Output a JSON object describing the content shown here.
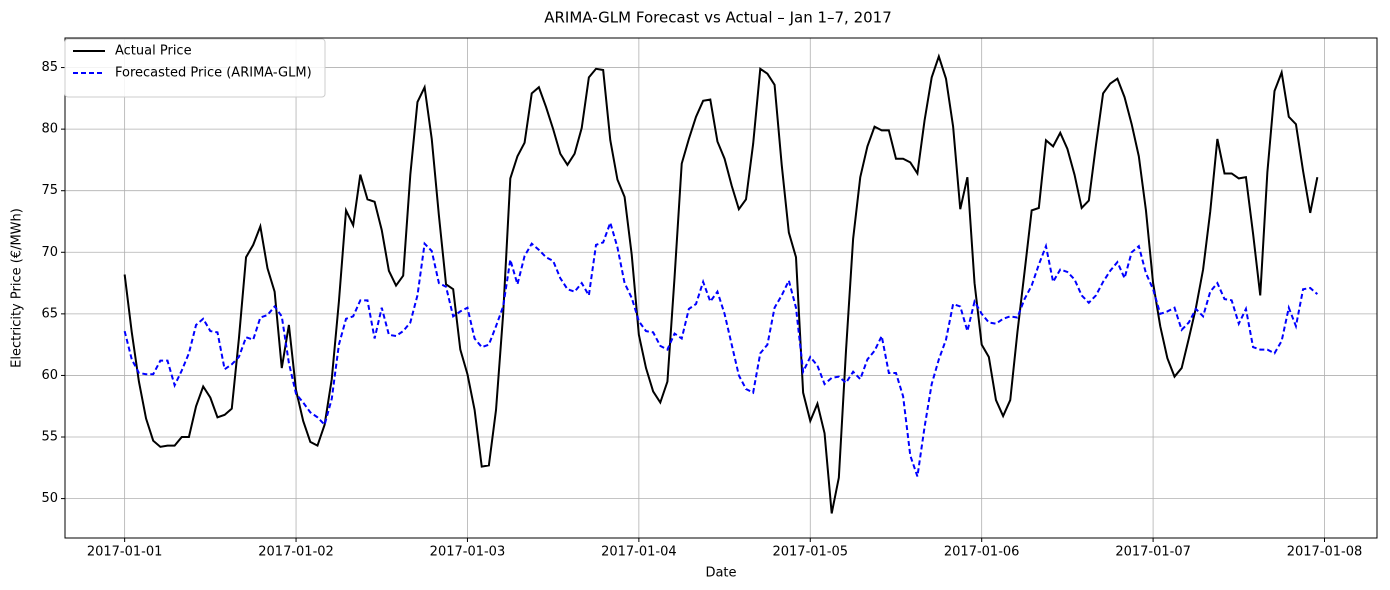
{
  "chart_data": {
    "type": "line",
    "title": "ARIMA-GLM Forecast vs Actual – Jan 1–7, 2017",
    "xlabel": "Date",
    "ylabel": "Electricity Price (€/MWh)",
    "x": [
      "2017-01-01T00:00",
      "2017-01-01T01:00",
      "2017-01-01T02:00",
      "2017-01-01T03:00",
      "2017-01-01T04:00",
      "2017-01-01T05:00",
      "2017-01-01T06:00",
      "2017-01-01T07:00",
      "2017-01-01T08:00",
      "2017-01-01T09:00",
      "2017-01-01T10:00",
      "2017-01-01T11:00",
      "2017-01-01T12:00",
      "2017-01-01T13:00",
      "2017-01-01T14:00",
      "2017-01-01T15:00",
      "2017-01-01T16:00",
      "2017-01-01T17:00",
      "2017-01-01T18:00",
      "2017-01-01T19:00",
      "2017-01-01T20:00",
      "2017-01-01T21:00",
      "2017-01-01T22:00",
      "2017-01-01T23:00",
      "2017-01-02T00:00",
      "2017-01-02T01:00",
      "2017-01-02T02:00",
      "2017-01-02T03:00",
      "2017-01-02T04:00",
      "2017-01-02T05:00",
      "2017-01-02T06:00",
      "2017-01-02T07:00",
      "2017-01-02T08:00",
      "2017-01-02T09:00",
      "2017-01-02T10:00",
      "2017-01-02T11:00",
      "2017-01-02T12:00",
      "2017-01-02T13:00",
      "2017-01-02T14:00",
      "2017-01-02T15:00",
      "2017-01-02T16:00",
      "2017-01-02T17:00",
      "2017-01-02T18:00",
      "2017-01-02T19:00",
      "2017-01-02T20:00",
      "2017-01-02T21:00",
      "2017-01-02T22:00",
      "2017-01-02T23:00",
      "2017-01-03T00:00",
      "2017-01-03T01:00",
      "2017-01-03T02:00",
      "2017-01-03T03:00",
      "2017-01-03T04:00",
      "2017-01-03T05:00",
      "2017-01-03T06:00",
      "2017-01-03T07:00",
      "2017-01-03T08:00",
      "2017-01-03T09:00",
      "2017-01-03T10:00",
      "2017-01-03T11:00",
      "2017-01-03T12:00",
      "2017-01-03T13:00",
      "2017-01-03T14:00",
      "2017-01-03T15:00",
      "2017-01-03T16:00",
      "2017-01-03T17:00",
      "2017-01-03T18:00",
      "2017-01-03T19:00",
      "2017-01-03T20:00",
      "2017-01-03T21:00",
      "2017-01-03T22:00",
      "2017-01-03T23:00",
      "2017-01-04T00:00",
      "2017-01-04T01:00",
      "2017-01-04T02:00",
      "2017-01-04T03:00",
      "2017-01-04T04:00",
      "2017-01-04T05:00",
      "2017-01-04T06:00",
      "2017-01-04T07:00",
      "2017-01-04T08:00",
      "2017-01-04T09:00",
      "2017-01-04T10:00",
      "2017-01-04T11:00",
      "2017-01-04T12:00",
      "2017-01-04T13:00",
      "2017-01-04T14:00",
      "2017-01-04T15:00",
      "2017-01-04T16:00",
      "2017-01-04T17:00",
      "2017-01-04T18:00",
      "2017-01-04T19:00",
      "2017-01-04T20:00",
      "2017-01-04T21:00",
      "2017-01-04T22:00",
      "2017-01-04T23:00",
      "2017-01-05T00:00",
      "2017-01-05T01:00",
      "2017-01-05T02:00",
      "2017-01-05T03:00",
      "2017-01-05T04:00",
      "2017-01-05T05:00",
      "2017-01-05T06:00",
      "2017-01-05T07:00",
      "2017-01-05T08:00",
      "2017-01-05T09:00",
      "2017-01-05T10:00",
      "2017-01-05T11:00",
      "2017-01-05T12:00",
      "2017-01-05T13:00",
      "2017-01-05T14:00",
      "2017-01-05T15:00",
      "2017-01-05T16:00",
      "2017-01-05T17:00",
      "2017-01-05T18:00",
      "2017-01-05T19:00",
      "2017-01-05T20:00",
      "2017-01-05T21:00",
      "2017-01-05T22:00",
      "2017-01-05T23:00",
      "2017-01-06T00:00",
      "2017-01-06T01:00",
      "2017-01-06T02:00",
      "2017-01-06T03:00",
      "2017-01-06T04:00",
      "2017-01-06T05:00",
      "2017-01-06T06:00",
      "2017-01-06T07:00",
      "2017-01-06T08:00",
      "2017-01-06T09:00",
      "2017-01-06T10:00",
      "2017-01-06T11:00",
      "2017-01-06T12:00",
      "2017-01-06T13:00",
      "2017-01-06T14:00",
      "2017-01-06T15:00",
      "2017-01-06T16:00",
      "2017-01-06T17:00",
      "2017-01-06T18:00",
      "2017-01-06T19:00",
      "2017-01-06T20:00",
      "2017-01-06T21:00",
      "2017-01-06T22:00",
      "2017-01-06T23:00",
      "2017-01-07T00:00",
      "2017-01-07T01:00",
      "2017-01-07T02:00",
      "2017-01-07T03:00",
      "2017-01-07T04:00",
      "2017-01-07T05:00",
      "2017-01-07T06:00",
      "2017-01-07T07:00",
      "2017-01-07T08:00",
      "2017-01-07T09:00",
      "2017-01-07T10:00",
      "2017-01-07T11:00",
      "2017-01-07T12:00",
      "2017-01-07T13:00",
      "2017-01-07T14:00",
      "2017-01-07T15:00",
      "2017-01-07T16:00",
      "2017-01-07T17:00",
      "2017-01-07T18:00",
      "2017-01-07T19:00",
      "2017-01-07T20:00",
      "2017-01-07T21:00",
      "2017-01-07T22:00",
      "2017-01-07T23:00"
    ],
    "series": [
      {
        "name": "Actual Price",
        "color": "#000000",
        "dash": "solid",
        "values": [
          68.2,
          63.5,
          59.5,
          56.5,
          54.7,
          54.2,
          54.3,
          54.3,
          55.0,
          55.0,
          57.5,
          59.1,
          58.2,
          56.6,
          56.8,
          57.3,
          63.0,
          69.6,
          70.6,
          72.1,
          68.7,
          66.8,
          60.6,
          64.1,
          58.8,
          56.3,
          54.6,
          54.3,
          56.0,
          59.7,
          66.0,
          73.4,
          72.2,
          76.3,
          74.3,
          74.1,
          71.8,
          68.5,
          67.3,
          68.1,
          76.3,
          82.2,
          83.4,
          79.2,
          73.0,
          67.4,
          67.0,
          62.1,
          60.1,
          57.2,
          52.6,
          52.7,
          57.2,
          65.0,
          76.0,
          77.8,
          78.9,
          82.9,
          83.4,
          81.8,
          80.0,
          78.0,
          77.1,
          78.0,
          80.1,
          84.2,
          84.9,
          84.8,
          79.1,
          75.9,
          74.5,
          69.8,
          63.3,
          60.6,
          58.7,
          57.8,
          59.5,
          68.0,
          77.2,
          79.2,
          81.0,
          82.3,
          82.4,
          79.0,
          77.6,
          75.4,
          73.5,
          74.3,
          78.8,
          84.9,
          84.5,
          83.6,
          77.1,
          71.6,
          69.6,
          58.6,
          56.3,
          57.7,
          55.3,
          48.8,
          51.7,
          62.0,
          71.1,
          76.1,
          78.6,
          80.2,
          79.9,
          79.9,
          77.6,
          77.6,
          77.3,
          76.4,
          80.7,
          84.2,
          85.9,
          84.1,
          80.2,
          73.5,
          76.1,
          67.5,
          62.5,
          61.5,
          58.0,
          56.7,
          58.0,
          63.5,
          68.4,
          73.4,
          73.6,
          79.1,
          78.6,
          79.7,
          78.4,
          76.3,
          73.6,
          74.2,
          78.7,
          82.9,
          83.7,
          84.1,
          82.6,
          80.4,
          77.8,
          73.4,
          67.5,
          64.0,
          61.4,
          59.9,
          60.6,
          63.0,
          65.5,
          68.6,
          73.3,
          79.2,
          76.4,
          76.4,
          76.0,
          76.1,
          71.5,
          66.5,
          76.5,
          83.1,
          84.6,
          81.0,
          80.4,
          76.6,
          73.2,
          76.1
        ]
      },
      {
        "name": "Forecasted Price (ARIMA-GLM)",
        "color": "#0000ff",
        "dash": "dashed",
        "values": [
          63.6,
          61.3,
          60.2,
          60.1,
          60.1,
          61.2,
          61.2,
          59.2,
          60.4,
          61.8,
          64.1,
          64.6,
          63.6,
          63.5,
          60.5,
          60.9,
          61.5,
          63.1,
          62.9,
          64.7,
          64.9,
          65.6,
          64.8,
          61.0,
          58.5,
          57.8,
          57.0,
          56.6,
          56.0,
          58.1,
          62.5,
          64.6,
          64.8,
          66.1,
          66.1,
          63.0,
          65.5,
          63.3,
          63.2,
          63.6,
          64.3,
          66.5,
          70.7,
          70.1,
          67.5,
          67.2,
          64.8,
          65.2,
          65.5,
          63.0,
          62.3,
          62.5,
          64.0,
          65.6,
          69.4,
          67.4,
          69.7,
          70.7,
          70.2,
          69.6,
          69.3,
          67.9,
          67.0,
          66.8,
          67.5,
          66.5,
          70.6,
          70.8,
          72.4,
          70.4,
          67.5,
          66.3,
          64.4,
          63.6,
          63.5,
          62.4,
          62.1,
          63.4,
          63.0,
          65.4,
          65.8,
          67.6,
          66.0,
          66.8,
          65.0,
          62.5,
          60.0,
          58.9,
          58.6,
          61.8,
          62.5,
          65.5,
          66.5,
          67.7,
          65.5,
          60.3,
          61.5,
          60.8,
          59.3,
          59.8,
          59.9,
          59.4,
          60.3,
          59.7,
          61.3,
          62.0,
          63.2,
          60.2,
          60.2,
          58.3,
          53.5,
          51.8,
          55.8,
          59.3,
          61.3,
          62.9,
          65.8,
          65.6,
          63.6,
          66.0,
          65.0,
          64.3,
          64.2,
          64.6,
          64.8,
          64.7,
          66.2,
          67.3,
          69.0,
          70.5,
          67.6,
          68.6,
          68.4,
          67.8,
          66.5,
          65.9,
          66.5,
          67.6,
          68.5,
          69.2,
          67.9,
          70.0,
          70.5,
          68.3,
          67.0,
          65.0,
          65.2,
          65.5,
          63.7,
          64.3,
          65.4,
          64.8,
          66.8,
          67.5,
          66.2,
          66.1,
          64.2,
          65.4,
          62.3,
          62.1,
          62.1,
          61.8,
          62.8,
          65.5,
          64.0,
          67.0,
          67.1,
          66.6
        ]
      }
    ],
    "xticks": [
      "2017-01-01",
      "2017-01-02",
      "2017-01-03",
      "2017-01-04",
      "2017-01-05",
      "2017-01-06",
      "2017-01-07",
      "2017-01-08"
    ],
    "ylim": [
      46.8,
      87.4
    ],
    "yticks": [
      50,
      55,
      60,
      65,
      70,
      75,
      80,
      85
    ],
    "grid": true,
    "legend": "upper left"
  }
}
